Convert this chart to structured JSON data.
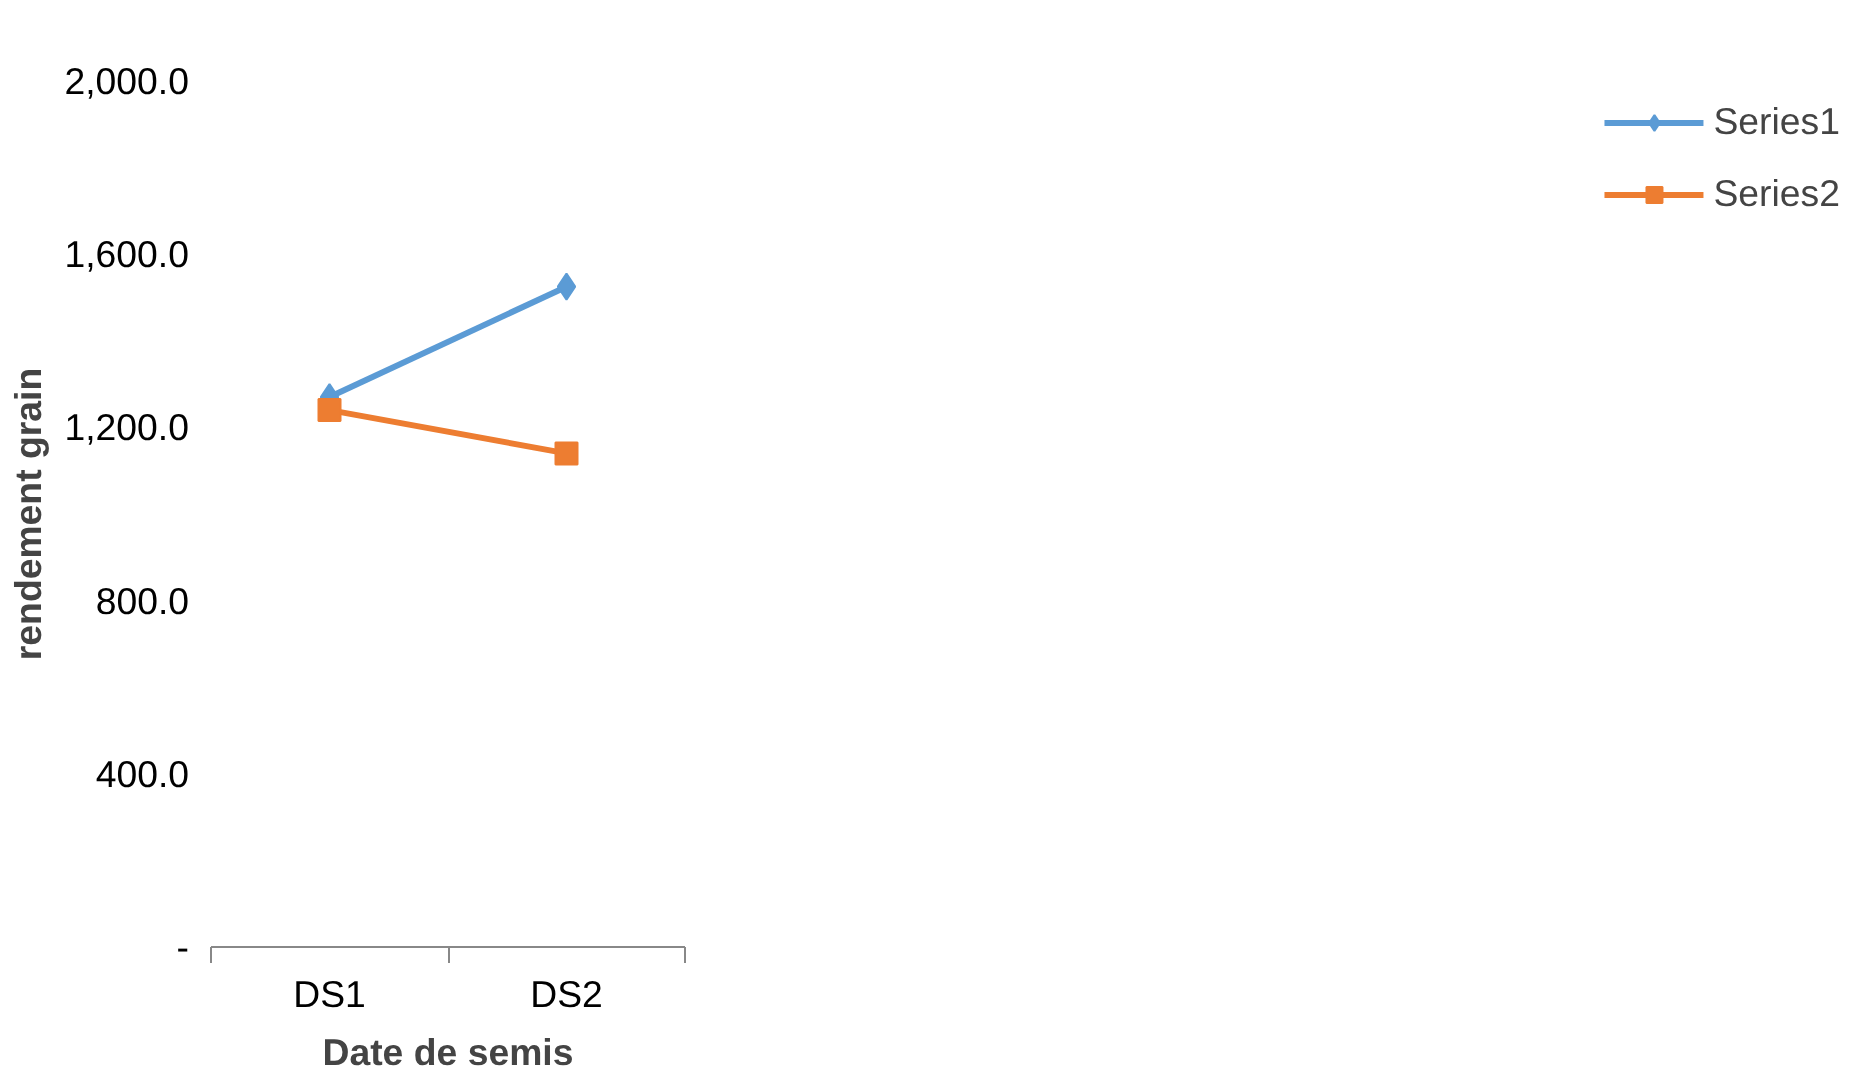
{
  "chart_data": {
    "type": "line",
    "xlabel": "Date de semis",
    "ylabel": "rendement grain",
    "categories": [
      "DS1",
      "DS2"
    ],
    "series": [
      {
        "name": "Series1",
        "color": "#5b9bd5",
        "marker": "diamond",
        "values": [
          1270,
          1525
        ]
      },
      {
        "name": "Series2",
        "color": "#ed7d31",
        "marker": "square",
        "values": [
          1240,
          1140
        ]
      }
    ],
    "ylim": [
      0,
      2000
    ],
    "yticks": [
      {
        "value": 0,
        "label": "-"
      },
      {
        "value": 400,
        "label": "400.0"
      },
      {
        "value": 800,
        "label": "800.0"
      },
      {
        "value": 1200,
        "label": "1,200.0"
      },
      {
        "value": 1600,
        "label": "1,600.0"
      },
      {
        "value": 2000,
        "label": "2,000.0"
      }
    ],
    "grid": false,
    "legend": "right"
  }
}
